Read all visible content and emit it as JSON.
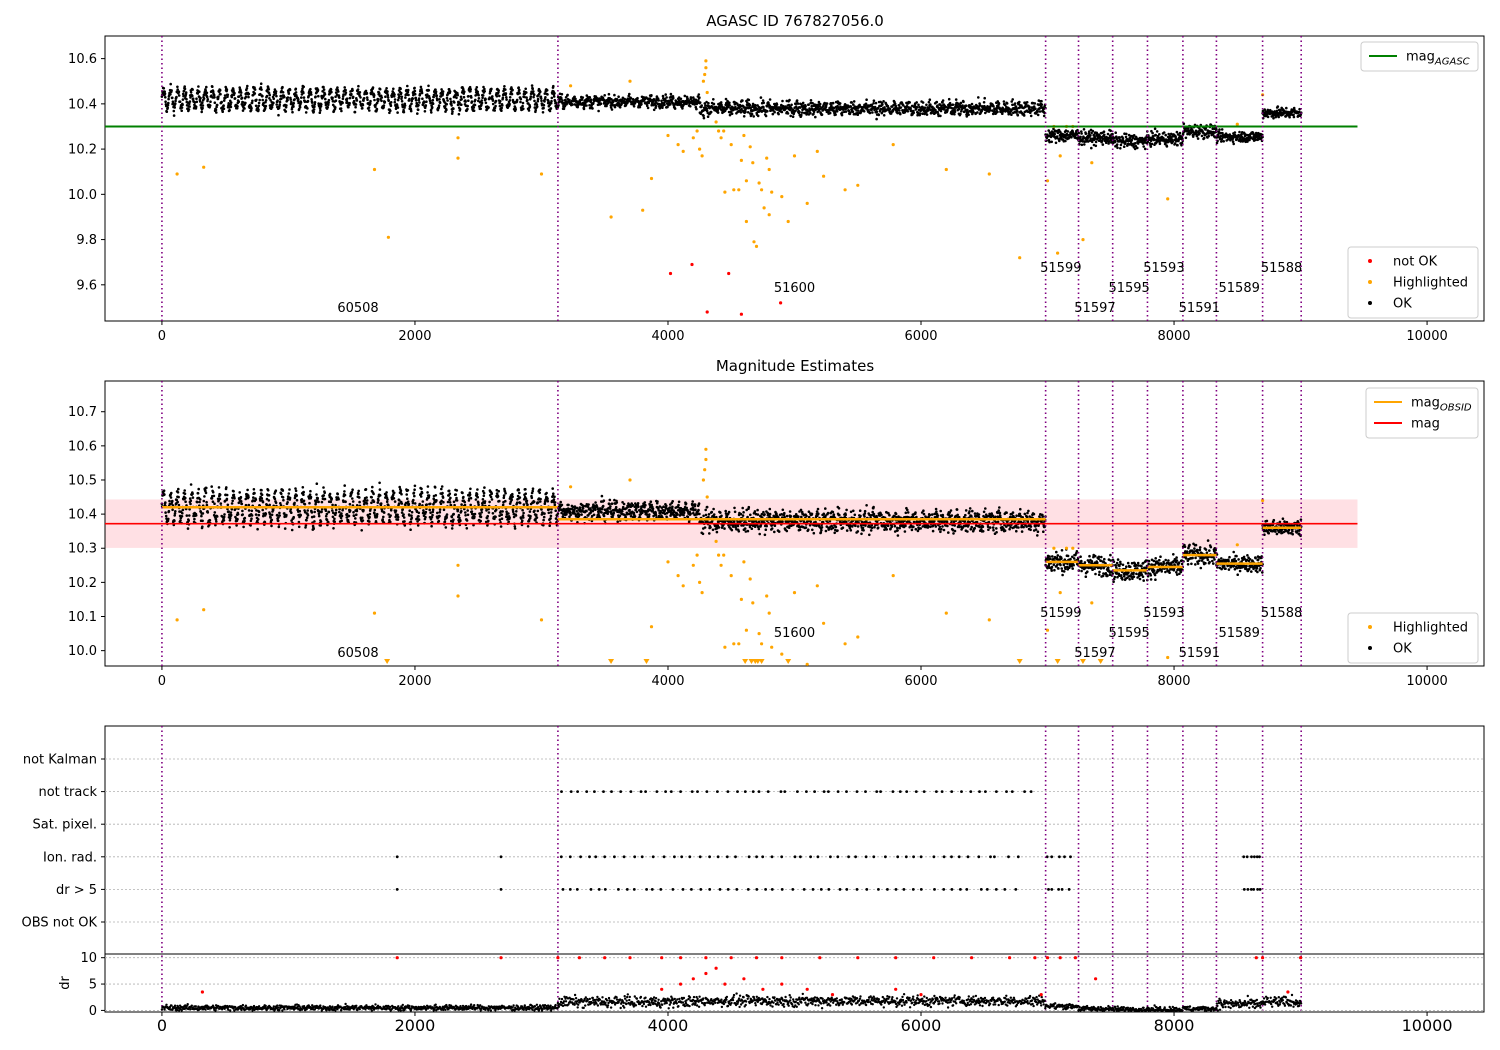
{
  "colors": {
    "ok": "#000000",
    "highlighted": "#ffa500",
    "not_ok": "#ff0000",
    "agasc_line": "#008000",
    "obsid_line": "#ffa500",
    "mag_line": "#ff0000",
    "band": "#ffd6db",
    "boundary": "#800080",
    "grid": "#b0b0b0"
  },
  "obs_boundaries": [
    0,
    3130,
    6985,
    7245,
    7515,
    7790,
    8070,
    8335,
    8700,
    9005
  ],
  "obs_labels": [
    {
      "text": "60508",
      "x": 1550,
      "row": 2
    },
    {
      "text": "51600",
      "x": 5000,
      "row": 1
    },
    {
      "text": "51599",
      "x": 7105,
      "row": 0
    },
    {
      "text": "51597",
      "x": 7375,
      "row": 2
    },
    {
      "text": "51595",
      "x": 7645,
      "row": 1
    },
    {
      "text": "51593",
      "x": 7920,
      "row": 0
    },
    {
      "text": "51591",
      "x": 8200,
      "row": 2
    },
    {
      "text": "51589",
      "x": 8515,
      "row": 1
    },
    {
      "text": "51588",
      "x": 8850,
      "row": 0
    }
  ],
  "obs_segments": [
    {
      "x0": 0,
      "x1": 3130,
      "mean": 10.42,
      "amp": 0.04,
      "noise": 0.02,
      "dr": 0.5
    },
    {
      "x0": 3130,
      "x1": 4250,
      "mean": 10.41,
      "amp": 0.01,
      "noise": 0.02,
      "dr": 1.6
    },
    {
      "x0": 4250,
      "x1": 6985,
      "mean": 10.38,
      "amp": 0.01,
      "noise": 0.025,
      "dr": 1.8
    },
    {
      "x0": 6985,
      "x1": 7245,
      "mean": 10.26,
      "amp": 0.0,
      "noise": 0.025,
      "dr": 0.8
    },
    {
      "x0": 7245,
      "x1": 7515,
      "mean": 10.25,
      "amp": 0.0,
      "noise": 0.025,
      "dr": 0.3
    },
    {
      "x0": 7515,
      "x1": 7790,
      "mean": 10.235,
      "amp": 0.0,
      "noise": 0.025,
      "dr": 0.2
    },
    {
      "x0": 7790,
      "x1": 8070,
      "mean": 10.245,
      "amp": 0.0,
      "noise": 0.025,
      "dr": 0.2
    },
    {
      "x0": 8070,
      "x1": 8335,
      "mean": 10.28,
      "amp": 0.0,
      "noise": 0.025,
      "dr": 0.3
    },
    {
      "x0": 8335,
      "x1": 8700,
      "mean": 10.255,
      "amp": 0.0,
      "noise": 0.02,
      "dr": 1.2
    },
    {
      "x0": 8700,
      "x1": 9005,
      "mean": 10.36,
      "amp": 0.0,
      "noise": 0.02,
      "dr": 1.6
    }
  ],
  "chart_data": [
    {
      "type": "scatter",
      "title": "AGASC ID 767827056.0",
      "xlim": [
        -450,
        10450
      ],
      "ylim": [
        9.44,
        10.7
      ],
      "xticks": [
        0,
        2000,
        4000,
        6000,
        8000,
        10000
      ],
      "yticks": [
        9.6,
        9.8,
        10.0,
        10.2,
        10.4,
        10.6
      ],
      "ytick_labels": [
        "9.6",
        "9.8",
        "10.0",
        "10.2",
        "10.4",
        "10.6"
      ],
      "grid": false,
      "legends": [
        {
          "placement": "top-right",
          "entries": [
            {
              "label": "mag",
              "sub": "AGASC",
              "kind": "line",
              "color_key": "agasc_line"
            }
          ]
        },
        {
          "placement": "bottom-right",
          "entries": [
            {
              "label": "not OK",
              "kind": "dot",
              "color_key": "not_ok"
            },
            {
              "label": "Highlighted",
              "kind": "dot",
              "color_key": "highlighted"
            },
            {
              "label": "OK",
              "kind": "dot",
              "color_key": "ok"
            }
          ]
        }
      ],
      "reference_lines": [
        {
          "name": "mag AGASC",
          "y": 10.3,
          "x_range": [
            -450,
            9450
          ]
        }
      ],
      "series": [
        {
          "name": "Highlighted",
          "points": [
            [
              120,
              10.09
            ],
            [
              330,
              10.12
            ],
            [
              1680,
              10.11
            ],
            [
              1790,
              9.81
            ],
            [
              2340,
              10.16
            ],
            [
              2340,
              10.25
            ],
            [
              3000,
              10.09
            ],
            [
              3230,
              10.48
            ],
            [
              3550,
              9.9
            ],
            [
              3700,
              10.5
            ],
            [
              3800,
              9.93
            ],
            [
              3870,
              10.07
            ],
            [
              4000,
              10.26
            ],
            [
              4080,
              10.22
            ],
            [
              4120,
              10.19
            ],
            [
              4200,
              10.25
            ],
            [
              4230,
              10.28
            ],
            [
              4250,
              10.2
            ],
            [
              4270,
              10.17
            ],
            [
              4280,
              10.5
            ],
            [
              4290,
              10.53
            ],
            [
              4300,
              10.56
            ],
            [
              4300,
              10.59
            ],
            [
              4310,
              10.45
            ],
            [
              4380,
              10.32
            ],
            [
              4400,
              10.28
            ],
            [
              4420,
              10.25
            ],
            [
              4440,
              10.28
            ],
            [
              4450,
              10.01
            ],
            [
              4500,
              10.22
            ],
            [
              4520,
              10.02
            ],
            [
              4560,
              10.02
            ],
            [
              4580,
              10.15
            ],
            [
              4600,
              10.26
            ],
            [
              4620,
              10.06
            ],
            [
              4620,
              9.88
            ],
            [
              4650,
              10.21
            ],
            [
              4670,
              10.14
            ],
            [
              4680,
              9.79
            ],
            [
              4700,
              9.77
            ],
            [
              4720,
              10.05
            ],
            [
              4740,
              10.02
            ],
            [
              4760,
              9.94
            ],
            [
              4780,
              10.16
            ],
            [
              4800,
              10.11
            ],
            [
              4800,
              9.91
            ],
            [
              4820,
              10.01
            ],
            [
              4900,
              9.99
            ],
            [
              4950,
              9.88
            ],
            [
              5000,
              10.17
            ],
            [
              5100,
              9.96
            ],
            [
              5180,
              10.19
            ],
            [
              5230,
              10.08
            ],
            [
              5400,
              10.02
            ],
            [
              5500,
              10.04
            ],
            [
              5780,
              10.22
            ],
            [
              6200,
              10.11
            ],
            [
              6540,
              10.09
            ],
            [
              6780,
              9.72
            ],
            [
              7000,
              10.06
            ],
            [
              7050,
              10.3
            ],
            [
              7080,
              9.74
            ],
            [
              7100,
              10.17
            ],
            [
              7150,
              10.3
            ],
            [
              7200,
              10.3
            ],
            [
              7280,
              9.8
            ],
            [
              7350,
              10.14
            ],
            [
              7950,
              9.98
            ],
            [
              8500,
              10.31
            ],
            [
              8700,
              10.44
            ]
          ]
        },
        {
          "name": "not OK",
          "points": [
            [
              4020,
              9.65
            ],
            [
              4190,
              9.69
            ],
            [
              4310,
              9.48
            ],
            [
              4480,
              9.65
            ],
            [
              4580,
              9.47
            ],
            [
              4890,
              9.52
            ]
          ]
        }
      ]
    },
    {
      "type": "scatter",
      "title": "Magnitude Estimates",
      "xlim": [
        -450,
        10450
      ],
      "ylim": [
        9.955,
        10.79
      ],
      "xticks": [
        0,
        2000,
        4000,
        6000,
        8000,
        10000
      ],
      "yticks": [
        10.0,
        10.1,
        10.2,
        10.3,
        10.4,
        10.5,
        10.6,
        10.7
      ],
      "ytick_labels": [
        "10.0",
        "10.1",
        "10.2",
        "10.3",
        "10.4",
        "10.5",
        "10.6",
        "10.7"
      ],
      "grid": false,
      "legends": [
        {
          "placement": "top-right",
          "entries": [
            {
              "label": "mag",
              "sub": "OBSID",
              "kind": "line",
              "color_key": "obsid_line"
            },
            {
              "label": "mag",
              "kind": "line",
              "color_key": "mag_line"
            }
          ]
        },
        {
          "placement": "bottom-right",
          "entries": [
            {
              "label": "Highlighted",
              "kind": "dot",
              "color_key": "highlighted"
            },
            {
              "label": "OK",
              "kind": "dot",
              "color_key": "ok"
            }
          ]
        }
      ],
      "mag": {
        "value": 10.372,
        "band": [
          10.301,
          10.443
        ],
        "x_range": [
          -450,
          9450
        ]
      },
      "obsid_mags": [
        {
          "x0": 0,
          "x1": 3130,
          "mag": 10.42
        },
        {
          "x0": 3130,
          "x1": 6985,
          "mag": 10.385
        },
        {
          "x0": 6985,
          "x1": 7245,
          "mag": 10.26
        },
        {
          "x0": 7245,
          "x1": 7515,
          "mag": 10.25
        },
        {
          "x0": 7515,
          "x1": 7790,
          "mag": 10.235
        },
        {
          "x0": 7790,
          "x1": 8070,
          "mag": 10.245
        },
        {
          "x0": 8070,
          "x1": 8335,
          "mag": 10.28
        },
        {
          "x0": 8335,
          "x1": 8700,
          "mag": 10.255
        },
        {
          "x0": 8700,
          "x1": 9005,
          "mag": 10.36
        }
      ],
      "clipped_below": [
        1780,
        3550,
        3830,
        4610,
        4660,
        4690,
        4710,
        4740,
        4950,
        6780,
        7080,
        7280,
        7420
      ]
    },
    {
      "type": "scatter",
      "title": "",
      "xlim": [
        -450,
        10450
      ],
      "xticks": [
        0,
        2000,
        4000,
        6000,
        8000,
        10000
      ],
      "flag_rows": [
        "not Kalman",
        "not track",
        "Sat. pixel.",
        "Ion. rad.",
        "dr > 5",
        "OBS not OK"
      ],
      "flag_points": {
        "not track": [
          [
            3130,
            6920,
            55
          ]
        ],
        "Ion. rad.": [
          [
            1860,
            1860,
            1
          ],
          [
            2680,
            2680,
            1
          ],
          [
            3130,
            6800,
            50
          ],
          [
            6985,
            7200,
            5
          ],
          [
            8550,
            8700,
            6
          ]
        ],
        "dr > 5": [
          [
            1860,
            1860,
            1
          ],
          [
            2680,
            2680,
            1
          ],
          [
            3130,
            6800,
            50
          ],
          [
            6985,
            7200,
            5
          ],
          [
            8550,
            8700,
            6
          ]
        ]
      },
      "dr_axis": {
        "ylabel": "dr",
        "ylim": [
          -0.3,
          10.7
        ],
        "yticks": [
          0,
          5,
          10
        ],
        "ytick_labels": [
          "0",
          "5",
          "10"
        ],
        "clip": 10
      }
    }
  ]
}
